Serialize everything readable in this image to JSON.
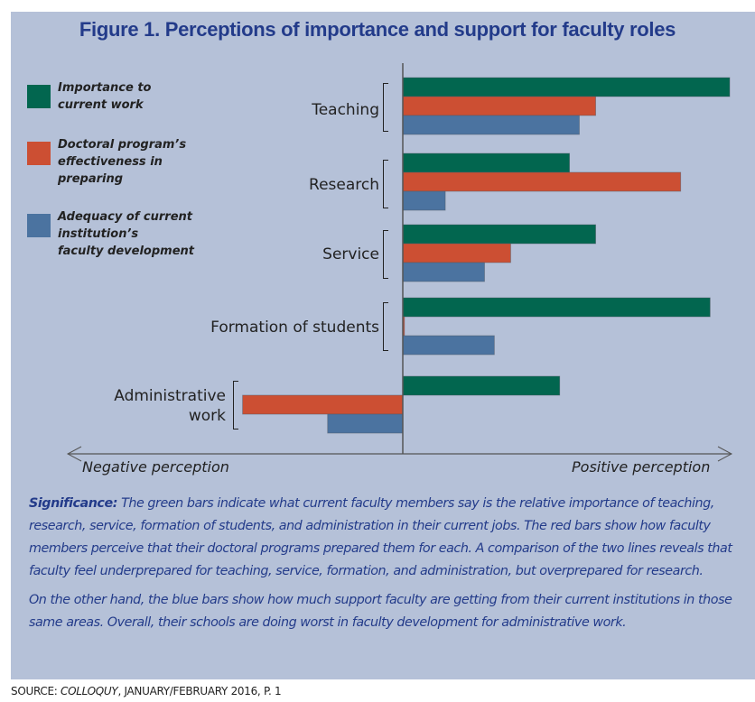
{
  "chart_data": {
    "type": "bar",
    "orientation": "horizontal",
    "title": "Figure 1. Perceptions of importance and support for faculty roles",
    "categories": [
      "Teaching",
      "Research",
      "Service",
      "Formation of students",
      "Administrative work"
    ],
    "category_lines": [
      [
        "Teaching"
      ],
      [
        "Research"
      ],
      [
        "Service"
      ],
      [
        "Formation of students"
      ],
      [
        "Administrative",
        "work"
      ]
    ],
    "series": [
      {
        "name": "Importance to current work",
        "legend_lines": [
          "Importance to",
          "current work"
        ],
        "color": "#02664f",
        "values": [
          100,
          51,
          59,
          94,
          48
        ]
      },
      {
        "name": "Doctoral program’s effectiveness in preparing",
        "legend_lines": [
          "Doctoral program’s",
          "effectiveness in",
          "preparing"
        ],
        "color": "#cc4f33",
        "values": [
          59,
          85,
          33,
          0.5,
          -49
        ]
      },
      {
        "name": "Adequacy of current institution’s faculty development",
        "legend_lines": [
          "Adequacy of current",
          "institution’s",
          "faculty development"
        ],
        "color": "#4b73a0",
        "values": [
          54,
          13,
          25,
          28,
          -23
        ]
      }
    ],
    "xlim": [
      -103,
      103
    ],
    "xlabel_negative": "Negative perception",
    "xlabel_positive": "Positive perception",
    "grid": false,
    "legend_position": "top-left"
  },
  "significance": {
    "lead": "Significance:",
    "paragraph1": " The green bars indicate what current faculty members say is the relative importance of teaching, research, service, formation of students, and administration in their current jobs. The red bars show how faculty members perceive that their doctoral programs prepared them for each. A comparison of the two lines reveals that faculty feel underprepared for teaching, service, formation, and administration, but overprepared for research.",
    "paragraph2": "On the other hand, the blue bars show how much support faculty are getting from their current institutions in those same areas. Overall, their schools are doing worst in faculty development for administrative work."
  },
  "source": {
    "prefix": "SOURCE: ",
    "publication": "COLLOQUY",
    "suffix": ", JANUARY/FEBRUARY 2016, P. 1"
  },
  "colors": {
    "panel_background": "#b5c1d8",
    "title_text": "#233b8a",
    "axis": "#555555"
  }
}
